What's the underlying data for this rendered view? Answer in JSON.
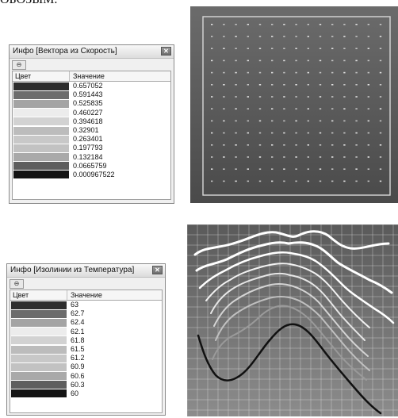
{
  "page_text": {
    "top_fragment": "ОБОЗЫМ."
  },
  "panel1": {
    "title": "Инфо [Вектора из Скорость]",
    "link_icon": "link-icon",
    "close_icon": "close-icon",
    "columns": [
      "Цвет",
      "Значение"
    ],
    "rows": [
      {
        "color": "#2e2e2e",
        "value": "0.657052"
      },
      {
        "color": "#6c6c6c",
        "value": "0.591443"
      },
      {
        "color": "#a4a4a4",
        "value": "0.525835"
      },
      {
        "color": "#ececec",
        "value": "0.460227"
      },
      {
        "color": "#d2d2d2",
        "value": "0.394618"
      },
      {
        "color": "#bcbcbc",
        "value": "0.32901"
      },
      {
        "color": "#c8c8c8",
        "value": "0.263401"
      },
      {
        "color": "#c2c2c2",
        "value": "0.197793"
      },
      {
        "color": "#a9a9a9",
        "value": "0.132184"
      },
      {
        "color": "#5e5e5e",
        "value": "0.0665759"
      },
      {
        "color": "#141414",
        "value": "0.000967522"
      }
    ]
  },
  "panel2": {
    "title": "Инфо [Изолинии из Температура]",
    "link_icon": "link-icon",
    "close_icon": "close-icon",
    "columns": [
      "Цвет",
      "Значение"
    ],
    "rows": [
      {
        "color": "#2e2e2e",
        "value": "63"
      },
      {
        "color": "#6c6c6c",
        "value": "62.7"
      },
      {
        "color": "#a4a4a4",
        "value": "62.4"
      },
      {
        "color": "#ececec",
        "value": "62.1"
      },
      {
        "color": "#d2d2d2",
        "value": "61.8"
      },
      {
        "color": "#bcbcbc",
        "value": "61.5"
      },
      {
        "color": "#c8c8c8",
        "value": "61.2"
      },
      {
        "color": "#c2c2c2",
        "value": "60.9"
      },
      {
        "color": "#a9a9a9",
        "value": "60.6"
      },
      {
        "color": "#5e5e5e",
        "value": "60.3"
      },
      {
        "color": "#141414",
        "value": "60"
      }
    ]
  }
}
